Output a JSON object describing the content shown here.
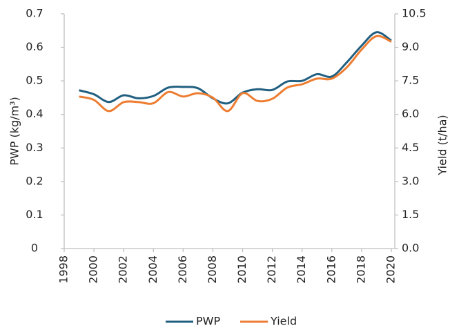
{
  "chart_data": {
    "type": "line",
    "y_label": "PWP (kg/m³)",
    "y2_label": "Yield (t/ha)",
    "x": [
      1999,
      2000,
      2001,
      2002,
      2003,
      2004,
      2005,
      2006,
      2007,
      2008,
      2009,
      2010,
      2011,
      2012,
      2013,
      2014,
      2015,
      2016,
      2017,
      2018,
      2019,
      2020
    ],
    "series": [
      {
        "name": "PWP",
        "color": "#215f80",
        "values": [
          0.472,
          0.46,
          0.437,
          0.457,
          0.448,
          0.455,
          0.48,
          0.482,
          0.478,
          0.448,
          0.433,
          0.465,
          0.475,
          0.473,
          0.498,
          0.5,
          0.52,
          0.513,
          0.555,
          0.605,
          0.645,
          0.62
        ]
      },
      {
        "name": "Yield",
        "color": "#ed7d31",
        "axis": "y2",
        "values": [
          6.8,
          6.65,
          6.15,
          6.55,
          6.55,
          6.5,
          7.0,
          6.8,
          6.95,
          6.75,
          6.15,
          6.95,
          6.6,
          6.7,
          7.2,
          7.35,
          7.6,
          7.6,
          8.1,
          8.9,
          9.5,
          9.25
        ]
      }
    ],
    "xlim": [
      1998,
      2020
    ],
    "xticks": [
      1998,
      2000,
      2002,
      2004,
      2006,
      2008,
      2010,
      2012,
      2014,
      2016,
      2018,
      2020
    ],
    "ylim": [
      0,
      0.7
    ],
    "yticks": [
      0,
      0.1,
      0.2,
      0.3,
      0.4,
      0.5,
      0.6,
      0.7
    ],
    "y2lim": [
      0,
      10.5
    ],
    "y2ticks": [
      {
        "value": 0,
        "label": "0.0"
      },
      1.5,
      {
        "value": 3,
        "label": "3.0"
      },
      4.5,
      {
        "value": 6,
        "label": "6.0"
      },
      7.5,
      {
        "value": 9,
        "label": "9.0"
      },
      10.5
    ],
    "legend": "bottom",
    "grid": false
  }
}
